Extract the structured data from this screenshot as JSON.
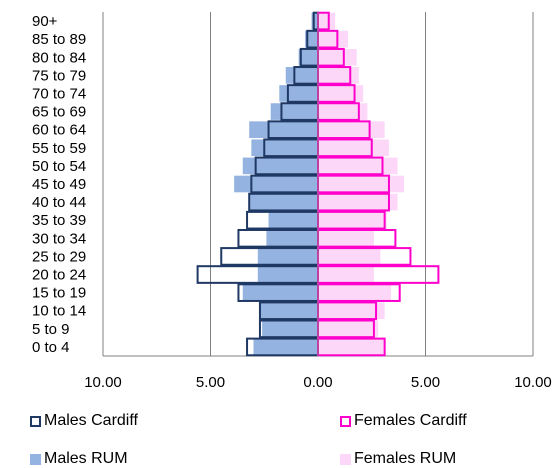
{
  "chart_data": {
    "type": "bar",
    "orientation": "horizontal",
    "categories": [
      "90+",
      "85 to 89",
      "80 to 84",
      "75 to 79",
      "70 to 74",
      "65 to 69",
      "60 to 64",
      "55 to 59",
      "50 to 54",
      "45 to 49",
      "40 to 44",
      "35 to 39",
      "30 to 34",
      "25 to 29",
      "20 to 24",
      "15 to 19",
      "10 to 14",
      "5 to 9",
      "0 to 4"
    ],
    "xlim": [
      -10,
      10
    ],
    "x_ticks": [
      "10.00",
      "5.00",
      "0.00",
      "5.00",
      "10.00"
    ],
    "grid": "vertical",
    "series": [
      {
        "name": "Males Cardiff",
        "side": "left",
        "style": "outline",
        "color": "#1f3864",
        "values": [
          0.2,
          0.5,
          0.8,
          1.1,
          1.4,
          1.7,
          2.3,
          2.5,
          2.9,
          3.1,
          3.2,
          3.3,
          3.7,
          4.5,
          5.6,
          3.7,
          2.7,
          2.7,
          3.3
        ]
      },
      {
        "name": "Females Cardiff",
        "side": "right",
        "style": "outline",
        "color": "#ff00cc",
        "values": [
          0.5,
          0.9,
          1.2,
          1.5,
          1.7,
          1.9,
          2.4,
          2.5,
          3.0,
          3.3,
          3.3,
          3.1,
          3.6,
          4.3,
          5.6,
          3.8,
          2.7,
          2.6,
          3.1
        ]
      },
      {
        "name": "Males RUM",
        "side": "left",
        "style": "fill",
        "color": "#95b3e0",
        "values": [
          0.3,
          0.6,
          0.9,
          1.5,
          1.8,
          2.2,
          3.2,
          3.1,
          3.5,
          3.9,
          3.2,
          2.3,
          2.4,
          2.8,
          2.8,
          3.5,
          2.7,
          2.6,
          3.0
        ]
      },
      {
        "name": "Females RUM",
        "side": "right",
        "style": "fill",
        "color": "#fcd7f8",
        "values": [
          0.8,
          1.4,
          1.8,
          1.9,
          2.1,
          2.3,
          3.1,
          3.3,
          3.7,
          4.0,
          3.7,
          3.2,
          2.6,
          2.9,
          2.6,
          3.4,
          3.1,
          2.8,
          3.1
        ]
      }
    ]
  },
  "legend": {
    "males_cardiff": "Males Cardiff",
    "females_cardiff": "Females Cardiff",
    "males_rum": "Males RUM",
    "females_rum": "Females RUM"
  }
}
